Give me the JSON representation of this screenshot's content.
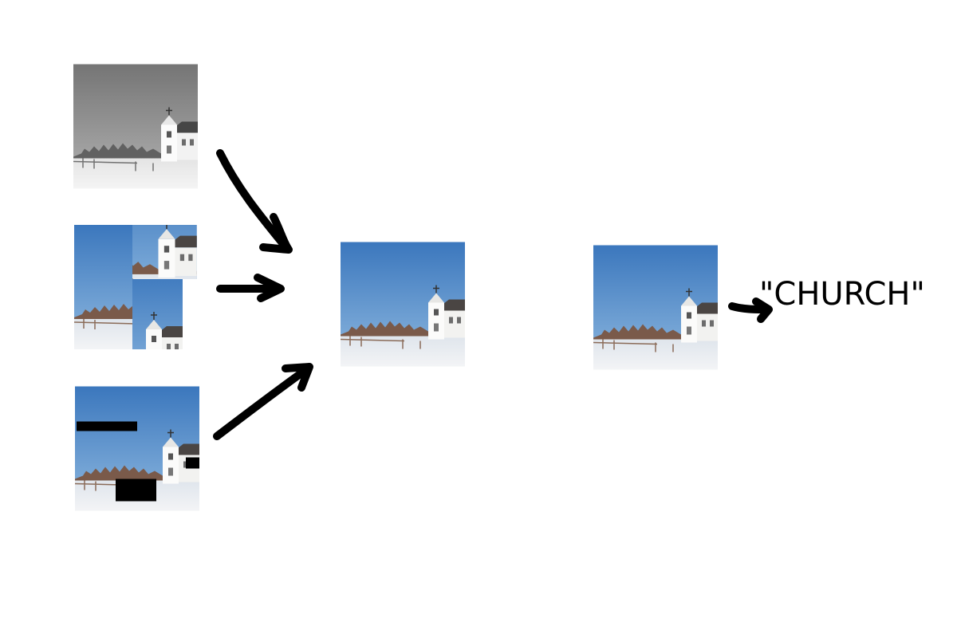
{
  "output": {
    "label": "\"CHURCH\""
  },
  "icons": {
    "church_scene": "church-scene-image",
    "arrow": "hand-drawn-arrow-icon"
  },
  "colors": {
    "sky": "#3d7fc4",
    "snow": "#eef0f3",
    "mask": "#000000"
  }
}
